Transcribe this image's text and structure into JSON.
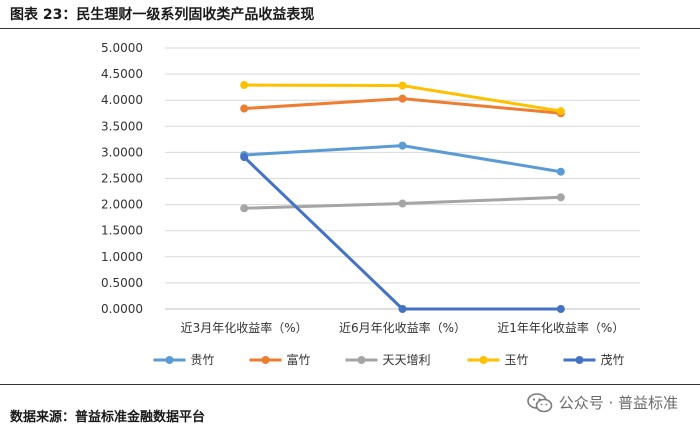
{
  "header": {
    "title": "图表 23：民生理财一级系列固收类产品收益表现"
  },
  "footer": {
    "source": "数据来源：普益标准金融数据平台",
    "watermark": "公众号 · 普益标准"
  },
  "colors": {
    "grid": "#d9d9d9",
    "axis": "#bfbfbf"
  },
  "chart_data": {
    "type": "line",
    "title": "",
    "xlabel": "",
    "ylabel": "",
    "categories": [
      "近3月年化收益率（%）",
      "近6月年化收益率（%）",
      "近1年年化收益率（%）"
    ],
    "ylim": [
      0,
      5
    ],
    "yticks": [
      "0.0000",
      "0.5000",
      "1.0000",
      "1.5000",
      "2.0000",
      "2.5000",
      "3.0000",
      "3.5000",
      "4.0000",
      "4.5000",
      "5.0000"
    ],
    "grid": "horizontal",
    "legend": "bottom",
    "series": [
      {
        "name": "贵竹",
        "color": "#5b9bd5",
        "values": [
          2.95,
          3.13,
          2.63
        ]
      },
      {
        "name": "富竹",
        "color": "#ed7d31",
        "values": [
          3.84,
          4.03,
          3.75
        ]
      },
      {
        "name": "天天增利",
        "color": "#a5a5a5",
        "values": [
          1.93,
          2.02,
          2.14
        ]
      },
      {
        "name": "玉竹",
        "color": "#ffc000",
        "values": [
          4.29,
          4.28,
          3.79
        ]
      },
      {
        "name": "茂竹",
        "color": "#4472c4",
        "values": [
          2.91,
          0.0,
          0.0
        ]
      }
    ]
  }
}
